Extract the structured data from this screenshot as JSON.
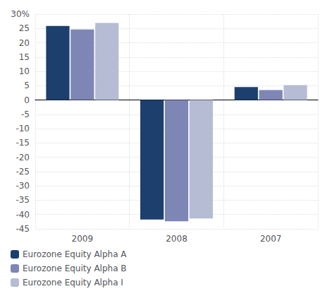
{
  "chart_data": {
    "type": "bar",
    "categories": [
      "2009",
      "2008",
      "2007"
    ],
    "series": [
      {
        "name": "Eurozone Equity Alpha A",
        "color": "#1c3f6e",
        "values": [
          25.84,
          -41.75,
          4.53
        ]
      },
      {
        "name": "Eurozone Equity Alpha B",
        "color": "#7d86b5",
        "values": [
          24.66,
          -42.33,
          3.45
        ]
      },
      {
        "name": "Eurozone Equity Alpha I",
        "color": "#b5bcd4",
        "values": [
          26.89,
          -41.38,
          5.18
        ]
      }
    ],
    "ylim": [
      -45,
      30
    ],
    "yticks": [
      -45,
      -40,
      -35,
      -30,
      -25,
      -20,
      -15,
      -10,
      -5,
      0,
      5,
      10,
      15,
      20,
      25,
      {
        "value": 30,
        "label": "30%"
      }
    ],
    "grid": true,
    "legend": "lower left"
  }
}
